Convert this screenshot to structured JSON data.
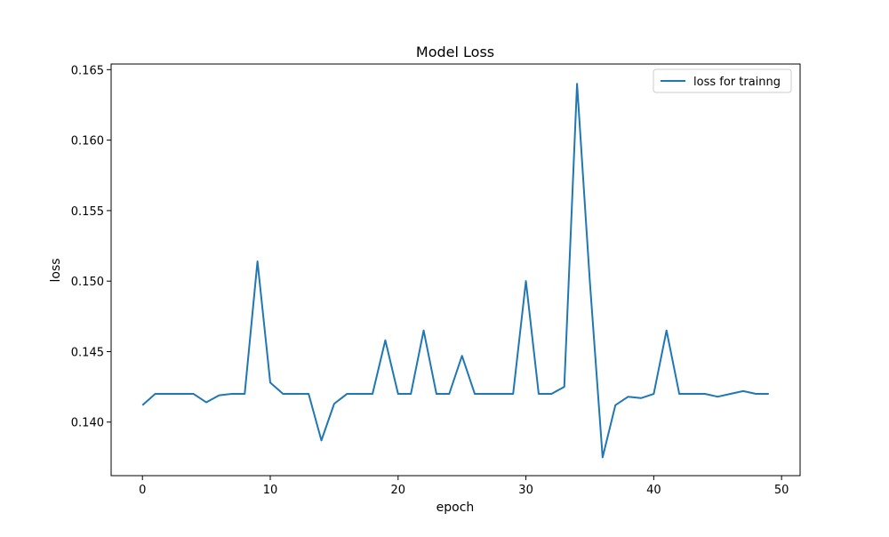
{
  "chart_data": {
    "type": "line",
    "title": "Model Loss",
    "xlabel": "epoch",
    "ylabel": "loss",
    "xlim": [
      -2.45,
      51.45
    ],
    "ylim": [
      0.1362,
      0.1654
    ],
    "xticks": [
      0,
      10,
      20,
      30,
      40,
      50
    ],
    "xtick_labels": [
      "0",
      "10",
      "20",
      "30",
      "40",
      "50"
    ],
    "yticks": [
      0.14,
      0.145,
      0.15,
      0.155,
      0.16,
      0.165
    ],
    "ytick_labels": [
      "0.140",
      "0.145",
      "0.150",
      "0.155",
      "0.160",
      "0.165"
    ],
    "grid": false,
    "legend": {
      "placement": "top-right"
    },
    "series": [
      {
        "name": "loss for trainng",
        "color": "#1f77b4",
        "x": [
          0,
          1,
          2,
          3,
          4,
          5,
          6,
          7,
          8,
          9,
          10,
          11,
          12,
          13,
          14,
          15,
          16,
          17,
          18,
          19,
          20,
          21,
          22,
          23,
          24,
          25,
          26,
          27,
          28,
          29,
          30,
          31,
          32,
          33,
          34,
          35,
          36,
          37,
          38,
          39,
          40,
          41,
          42,
          43,
          44,
          45,
          46,
          47,
          48,
          49
        ],
        "y": [
          0.1412,
          0.142,
          0.142,
          0.142,
          0.142,
          0.1414,
          0.1419,
          0.142,
          0.142,
          0.1514,
          0.1428,
          0.142,
          0.142,
          0.142,
          0.1387,
          0.1413,
          0.142,
          0.142,
          0.142,
          0.1458,
          0.142,
          0.142,
          0.1465,
          0.142,
          0.142,
          0.1447,
          0.142,
          0.142,
          0.142,
          0.142,
          0.15,
          0.142,
          0.142,
          0.1425,
          0.164,
          0.15,
          0.1375,
          0.1412,
          0.1418,
          0.1417,
          0.142,
          0.1465,
          0.142,
          0.142,
          0.142,
          0.1418,
          0.142,
          0.1422,
          0.142,
          0.142
        ]
      }
    ]
  }
}
